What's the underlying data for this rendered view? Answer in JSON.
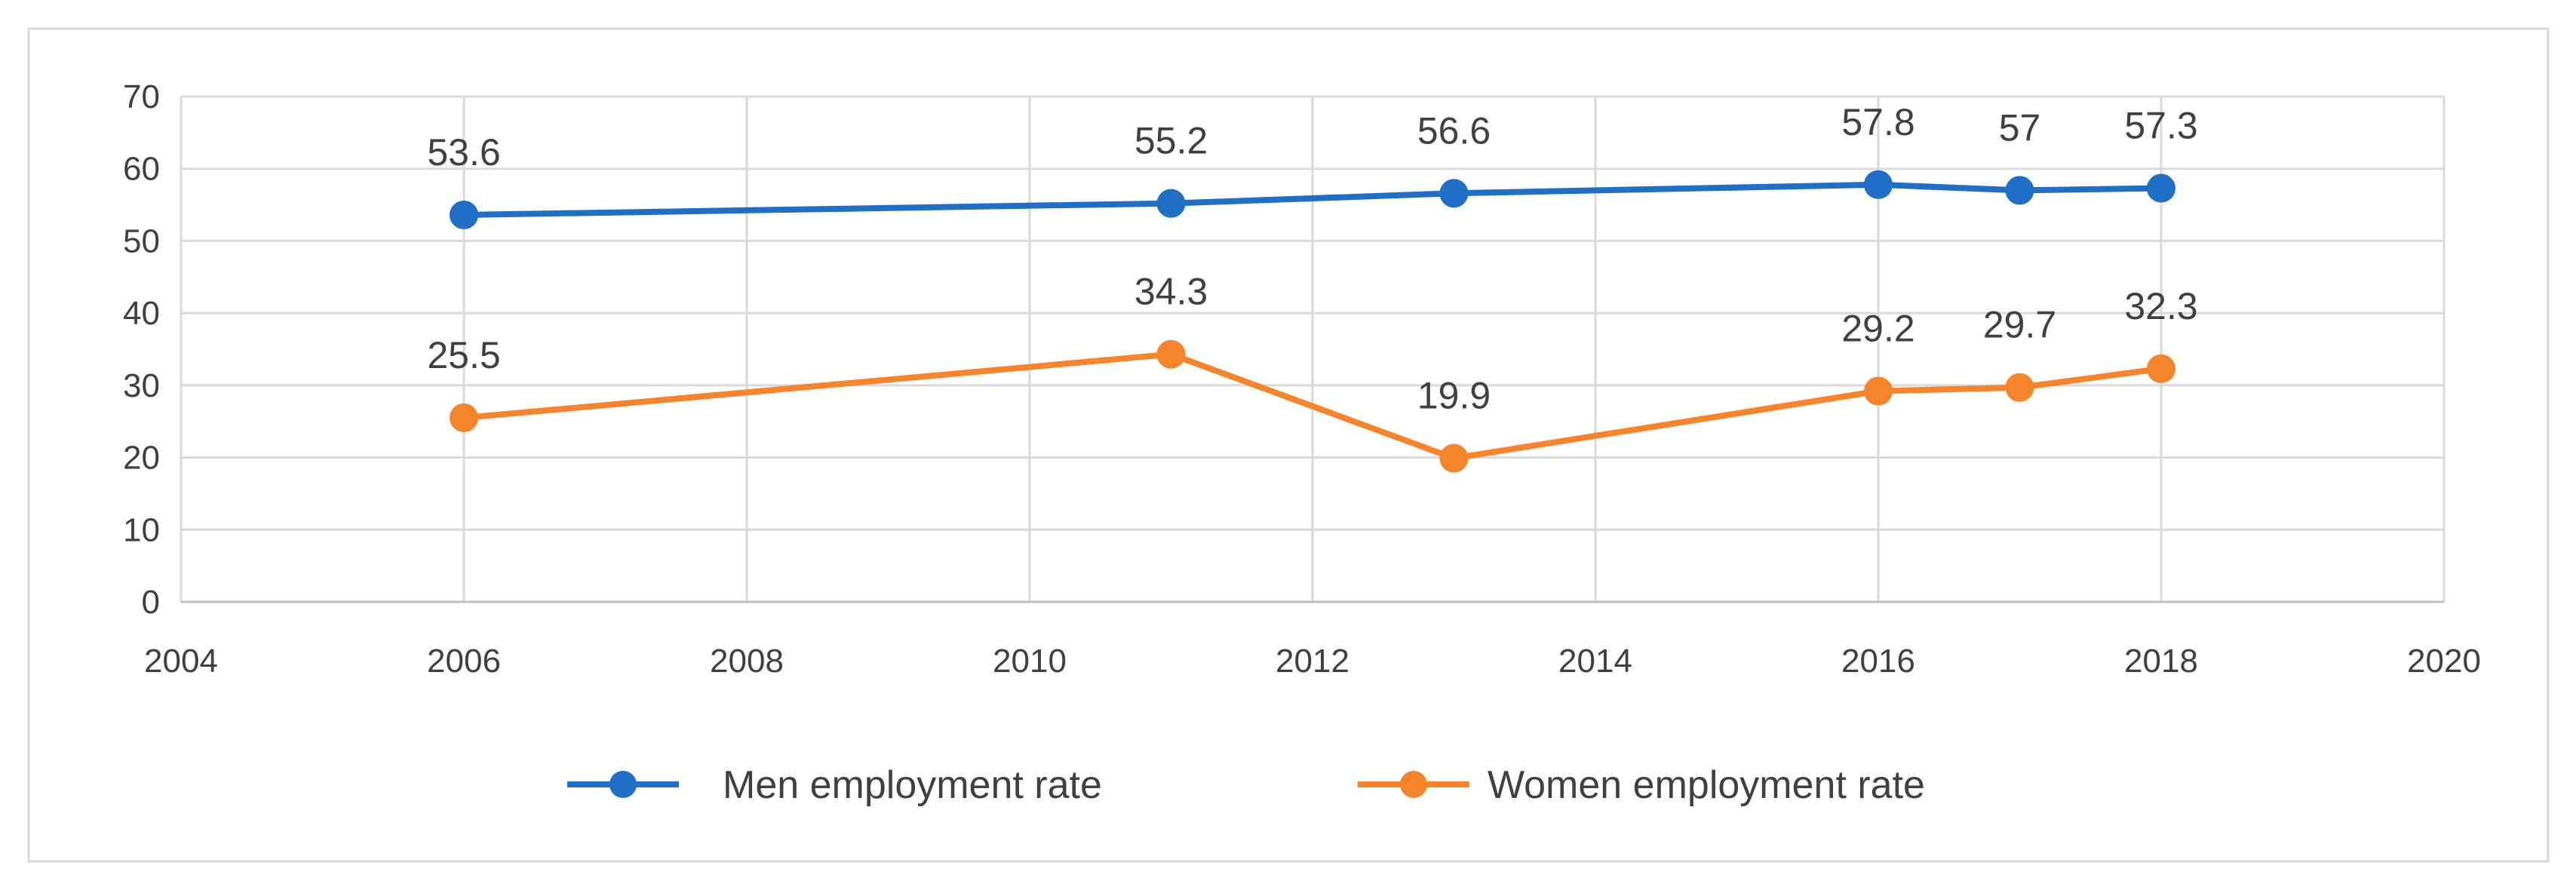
{
  "chart_data": {
    "type": "line",
    "title": "",
    "xlabel": "",
    "ylabel": "",
    "xlim": [
      2004,
      2020
    ],
    "ylim": [
      0,
      70
    ],
    "xticks": [
      2004,
      2006,
      2008,
      2010,
      2012,
      2014,
      2016,
      2018,
      2020
    ],
    "yticks": [
      0,
      10,
      20,
      30,
      40,
      50,
      60,
      70
    ],
    "grid": true,
    "legend_position": "bottom",
    "x": [
      2006,
      2011,
      2013,
      2016,
      2017,
      2018
    ],
    "series": [
      {
        "name": "Men employment rate",
        "color": "#1f6fc6",
        "values": [
          53.6,
          55.2,
          56.6,
          57.8,
          57,
          57.3
        ],
        "labels": [
          "53.6",
          "55.2",
          "56.6",
          "57.8",
          "57",
          "57.3"
        ]
      },
      {
        "name": "Women employment rate",
        "color": "#f5842b",
        "values": [
          25.5,
          34.3,
          19.9,
          29.2,
          29.7,
          32.3
        ],
        "labels": [
          "25.5",
          "34.3",
          "19.9",
          "29.2",
          "29.7",
          "32.3"
        ]
      }
    ]
  }
}
